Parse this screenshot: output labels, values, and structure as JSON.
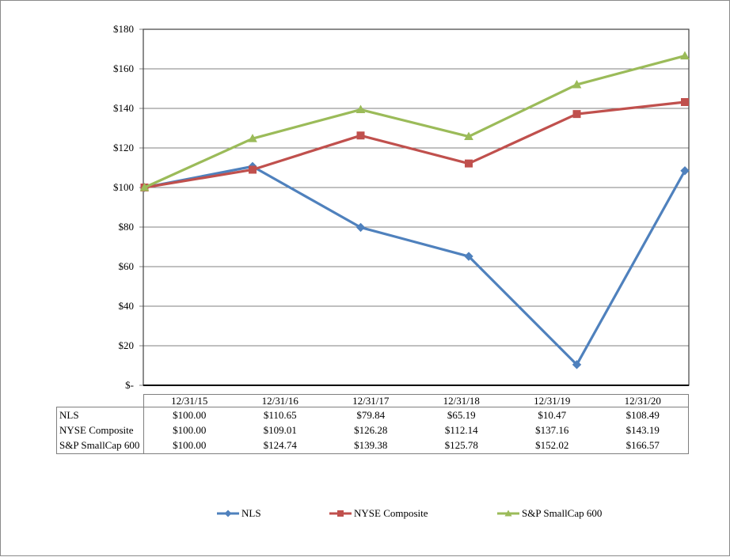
{
  "page": {
    "background": "#ffffff",
    "outer_border_color": "#8a8a8a",
    "gridline_color": "#808080",
    "axis_color": "#000000",
    "table_border_color": "#7f7f7f"
  },
  "chart_data": {
    "type": "line",
    "title": "",
    "xlabel": "",
    "ylabel": "",
    "x": [
      "12/31/15",
      "12/31/16",
      "12/31/17",
      "12/31/18",
      "12/31/19",
      "12/31/20"
    ],
    "y_ticks": [
      "$180",
      "$160",
      "$140",
      "$120",
      "$100",
      "$80",
      "$60",
      "$40",
      "$20",
      "$-"
    ],
    "ylim": [
      0,
      180
    ],
    "y_tick_interval": 20,
    "grid": true,
    "legend_position": "bottom",
    "series": [
      {
        "name": "NLS",
        "color": "#4F81BD",
        "marker": "diamond",
        "values": [
          100.0,
          110.65,
          79.84,
          65.19,
          10.47,
          108.49
        ]
      },
      {
        "name": "NYSE Composite",
        "color": "#C0504D",
        "marker": "square",
        "values": [
          100.0,
          109.01,
          126.28,
          112.14,
          137.16,
          143.19
        ]
      },
      {
        "name": "S&P SmallCap 600",
        "color": "#9BBB59",
        "marker": "triangle",
        "values": [
          100.0,
          124.74,
          139.38,
          125.78,
          152.02,
          166.57
        ]
      }
    ]
  },
  "table": {
    "column_headers": [
      "12/31/15",
      "12/31/16",
      "12/31/17",
      "12/31/18",
      "12/31/19",
      "12/31/20"
    ],
    "rows": [
      {
        "label": "NLS",
        "values": [
          "$100.00",
          "$110.65",
          "$79.84",
          "$65.19",
          "$10.47",
          "$108.49"
        ]
      },
      {
        "label": "NYSE Composite",
        "values": [
          "$100.00",
          "$109.01",
          "$126.28",
          "$112.14",
          "$137.16",
          "$143.19"
        ]
      },
      {
        "label": "S&P SmallCap 600",
        "values": [
          "$100.00",
          "$124.74",
          "$139.38",
          "$125.78",
          "$152.02",
          "$166.57"
        ]
      }
    ]
  },
  "legend": {
    "items": [
      {
        "label": "NLS",
        "color": "#4F81BD",
        "marker": "diamond"
      },
      {
        "label": "NYSE Composite",
        "color": "#C0504D",
        "marker": "square"
      },
      {
        "label": "S&P SmallCap 600",
        "color": "#9BBB59",
        "marker": "triangle"
      }
    ]
  }
}
